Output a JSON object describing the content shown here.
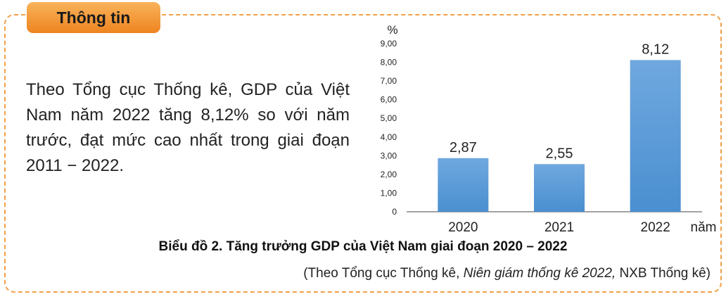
{
  "header": {
    "tag": "Thông tin"
  },
  "info_text": "Theo Tổng cục Thống kê, GDP của Việt Nam năm 2022 tăng 8,12% so với năm trước, đạt mức cao nhất trong giai đoạn 2011 − 2022.",
  "chart_data": {
    "type": "bar",
    "title": "Biểu đồ 2. Tăng trưởng GDP của Việt Nam giai đoạn 2020 – 2022",
    "categories": [
      "2020",
      "2021",
      "2022"
    ],
    "values": [
      2.87,
      2.55,
      8.12
    ],
    "value_labels": [
      "2,87",
      "2,55",
      "8,12"
    ],
    "xlabel": "năm",
    "ylabel": "%",
    "ylim": [
      0,
      9
    ],
    "yticks": [
      "0",
      "1,00",
      "2,00",
      "3,00",
      "4,00",
      "5,00",
      "6,00",
      "7,00",
      "8,00",
      "9,00"
    ],
    "bar_color": "#4a8fd0",
    "grid": false
  },
  "source": {
    "prefix": "(Theo Tổng cục Thống kê, ",
    "italic": "Niên giám thống kê 2022,",
    "suffix": " NXB Thống kê)"
  }
}
